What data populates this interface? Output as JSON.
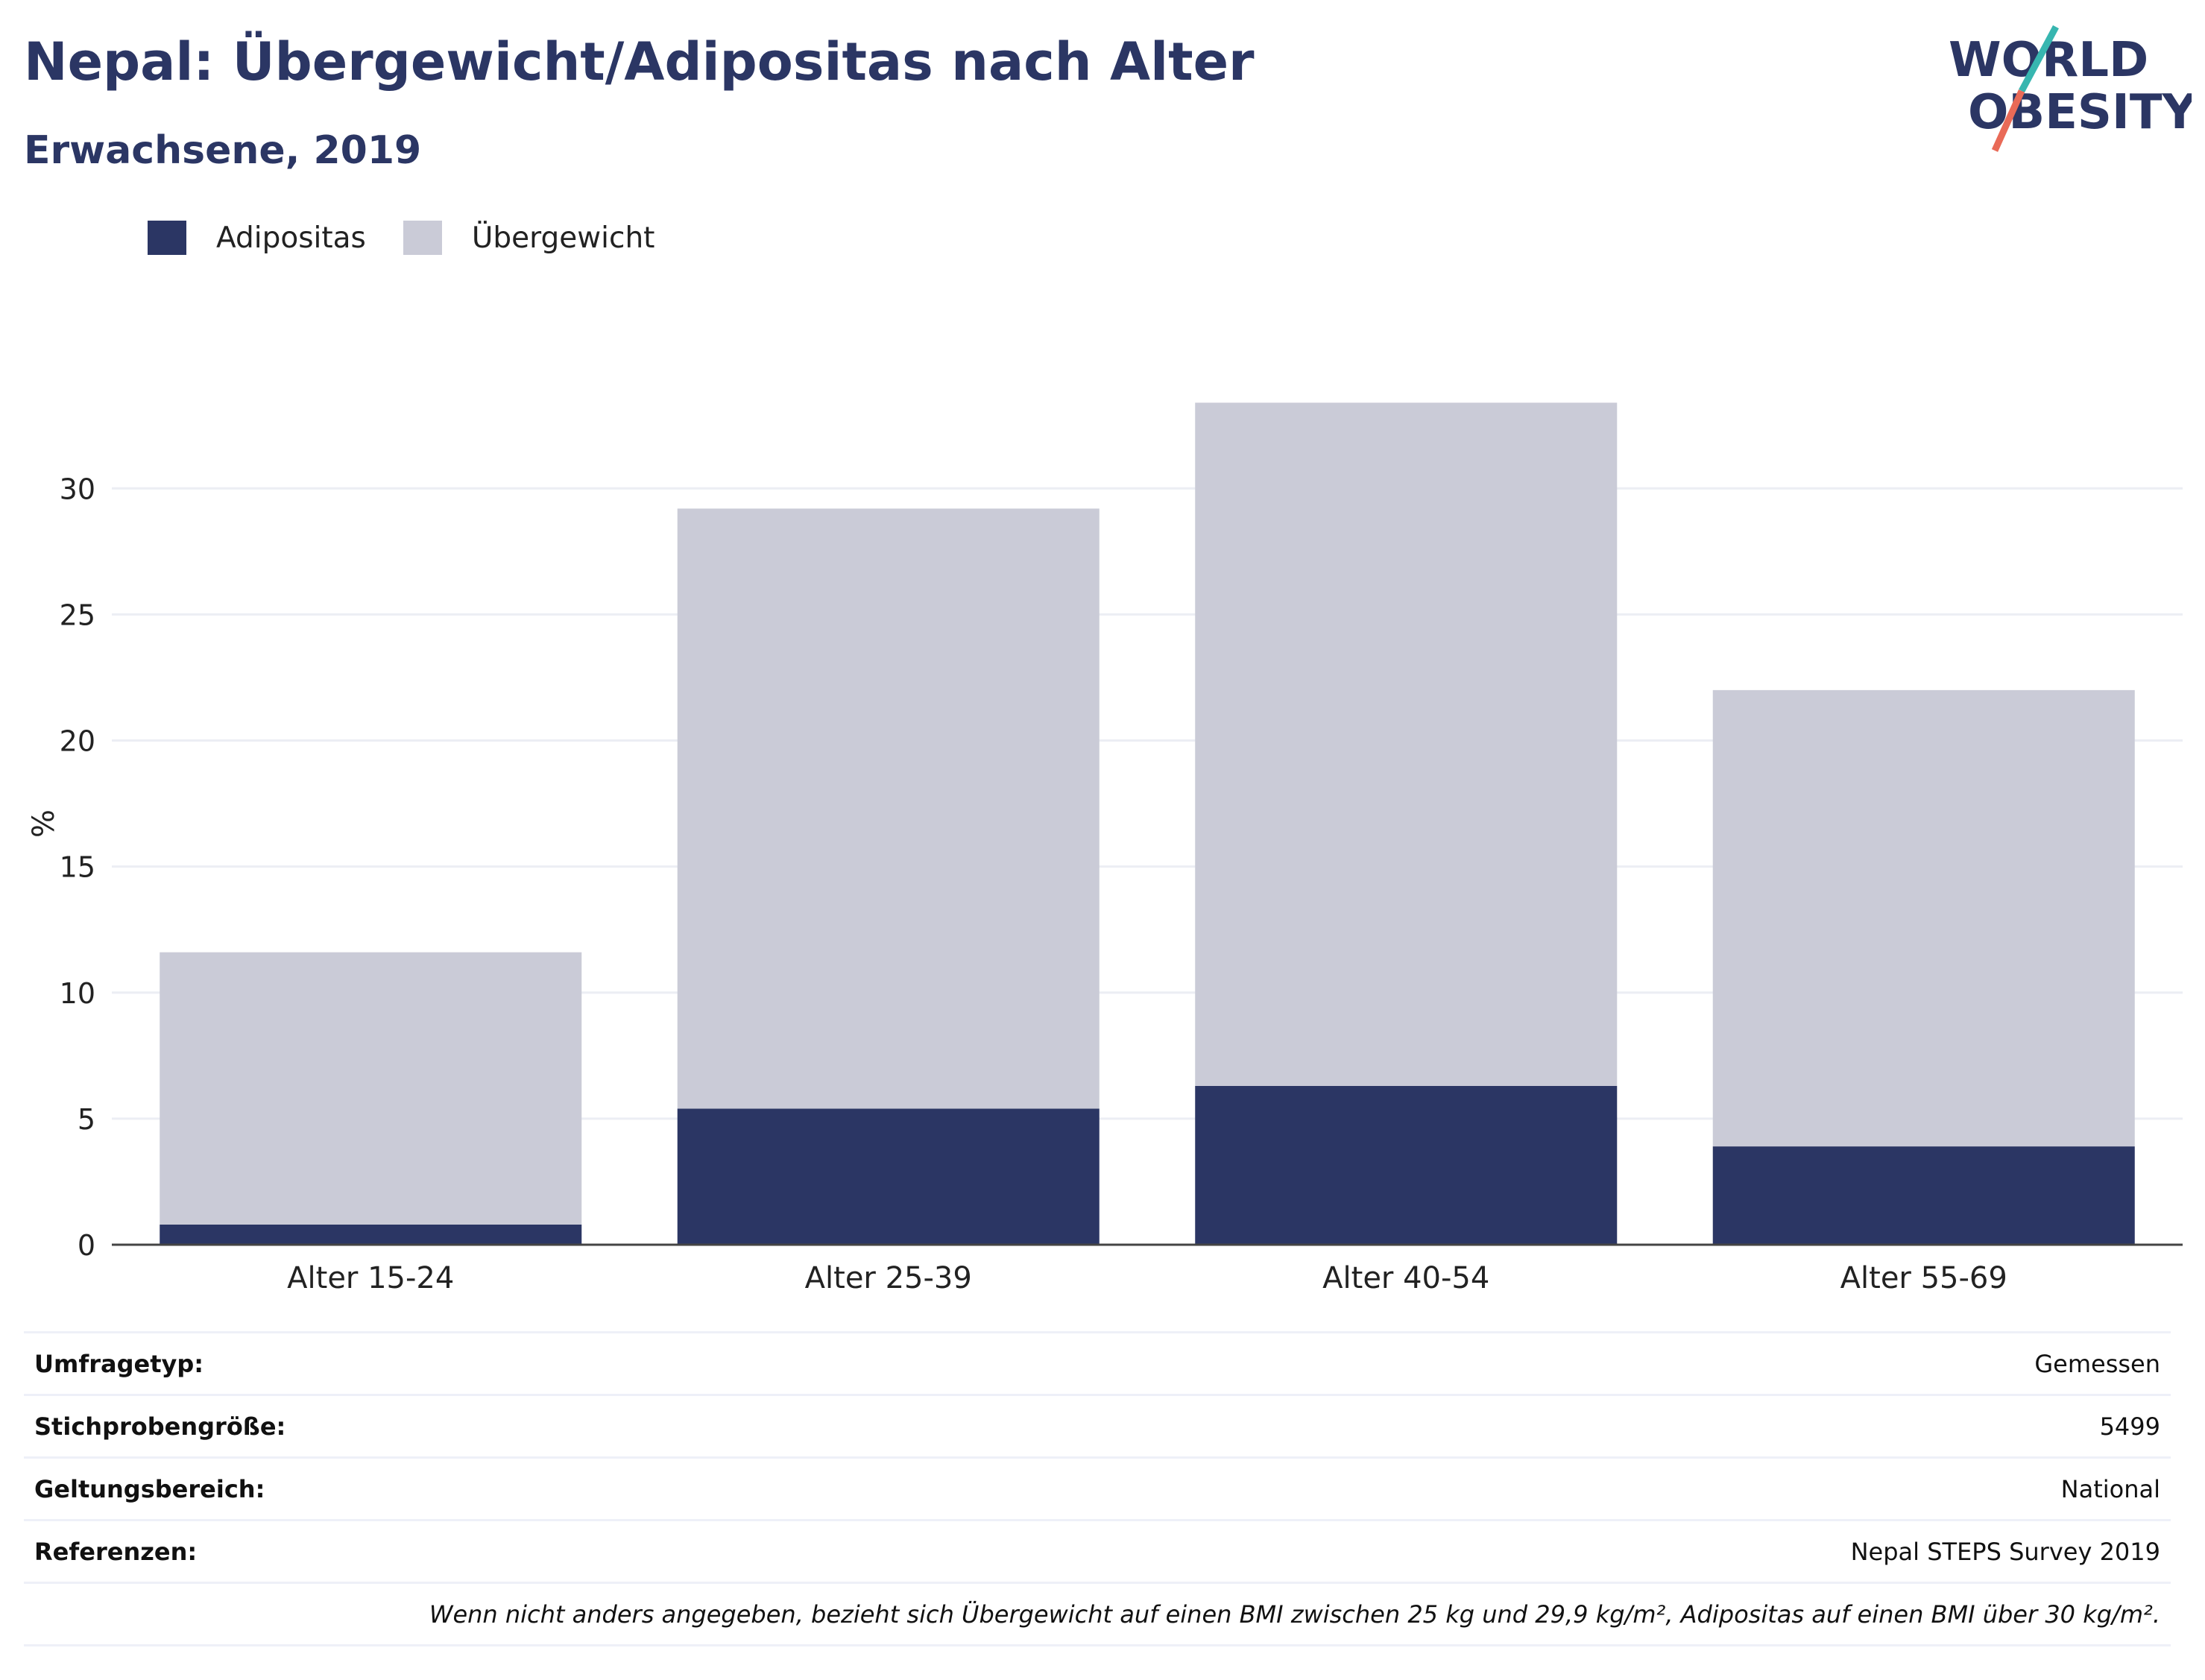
{
  "header": {
    "title": "Nepal: Übergewicht/Adipositas nach Alter",
    "subtitle": "Erwachsene, 2019"
  },
  "logo": {
    "line1": "WORLD",
    "line2": "OBESITY",
    "accent_teal": "#37b6b0",
    "accent_red": "#e96a57"
  },
  "legend": [
    {
      "label": "Adipositas",
      "color": "#2b3664"
    },
    {
      "label": "Übergewicht",
      "color": "#cacbd7"
    }
  ],
  "chart_data": {
    "type": "bar",
    "stacked": true,
    "categories": [
      "Alter 15-24",
      "Alter 25-39",
      "Alter 40-54",
      "Alter 55-69"
    ],
    "series": [
      {
        "name": "Adipositas",
        "values": [
          0.8,
          5.4,
          6.3,
          3.9
        ],
        "color": "#2b3664"
      },
      {
        "name": "Übergewicht",
        "values": [
          10.8,
          23.8,
          27.1,
          18.1
        ],
        "color": "#cacbd7"
      }
    ],
    "ylabel": "%",
    "yticks": [
      0,
      5,
      10,
      15,
      20,
      25,
      30
    ],
    "ylim": [
      0,
      34
    ],
    "grid": true,
    "legend_position": "top-left"
  },
  "info": [
    {
      "key": "Umfragetyp:",
      "value": "Gemessen"
    },
    {
      "key": "Stichprobengröße:",
      "value": "5499"
    },
    {
      "key": "Geltungsbereich:",
      "value": "National"
    },
    {
      "key": "Referenzen:",
      "value": "Nepal STEPS Survey 2019"
    }
  ],
  "footnote": "Wenn nicht anders angegeben, bezieht sich Übergewicht auf einen BMI zwischen 25 kg und 29,9 kg/m², Adipositas auf einen BMI über 30 kg/m²."
}
